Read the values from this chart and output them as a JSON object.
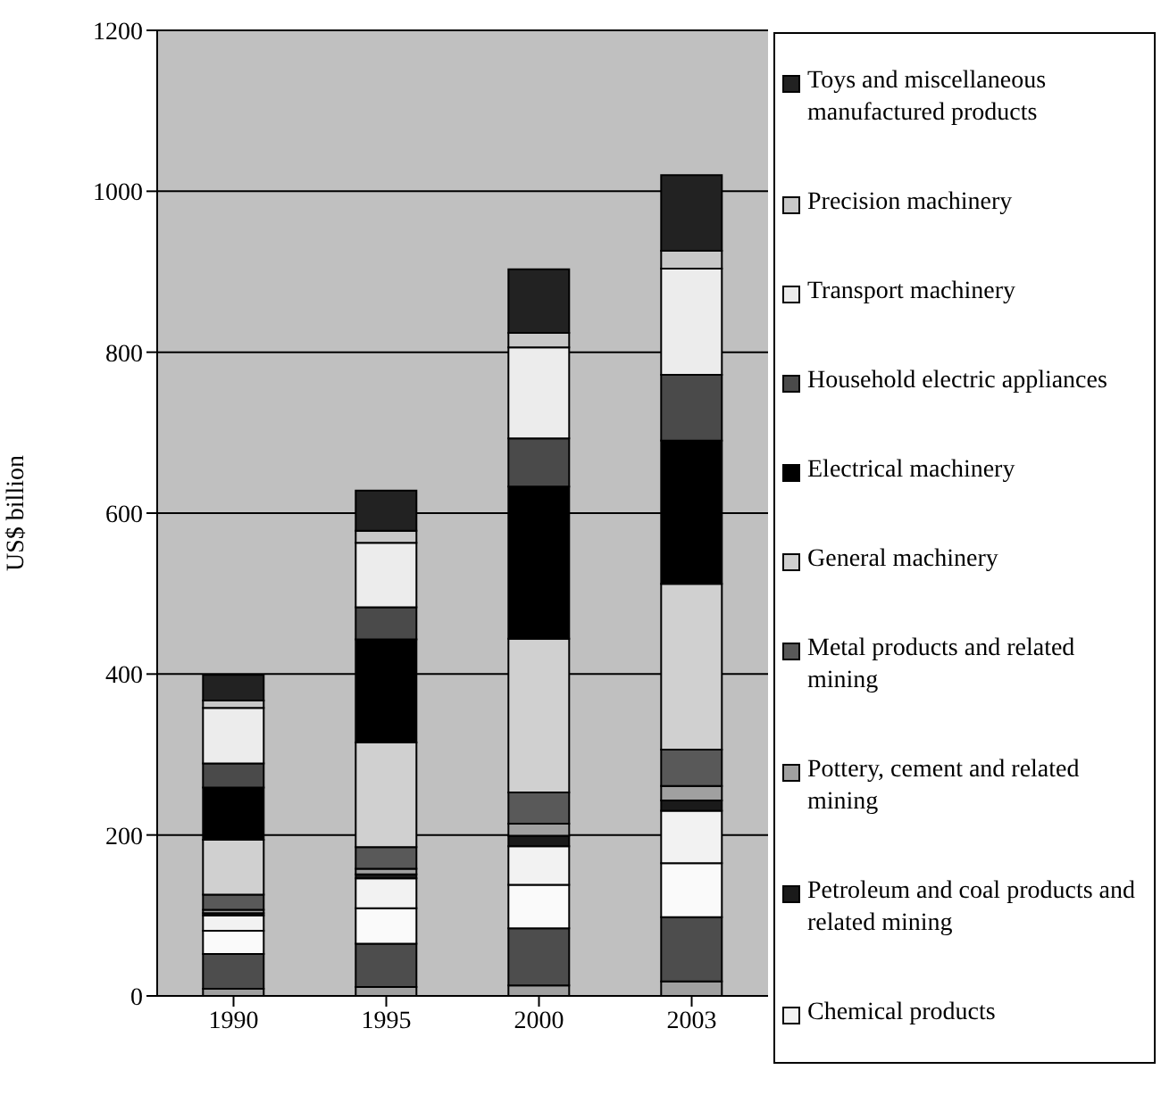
{
  "chart_data": {
    "type": "bar",
    "ylabel": "US$ billion",
    "categories": [
      "1990",
      "1995",
      "2000",
      "2003"
    ],
    "stacked": true,
    "ylim": [
      0,
      1200
    ],
    "yticks": [
      0,
      200,
      400,
      600,
      800,
      1000,
      1200
    ],
    "grid": "y",
    "legend": "right",
    "series": [
      {
        "color": "#a0a0a0",
        "values": [
          9,
          11,
          13,
          18
        ]
      },
      {
        "color": "#4d4d4d",
        "values": [
          43,
          54,
          71,
          80
        ]
      },
      {
        "color": "#fafafa",
        "values": [
          29,
          44,
          54,
          67
        ]
      },
      {
        "name": "Chemical products",
        "color": "#f2f2f2",
        "values": [
          19,
          37,
          48,
          65
        ]
      },
      {
        "name": "Petroleum and coal products and related mining",
        "color": "#1a1a1a",
        "values": [
          3,
          5,
          13,
          13
        ]
      },
      {
        "name": "Pottery, cement and related mining",
        "color": "#a0a0a0",
        "values": [
          4,
          7,
          15,
          18
        ]
      },
      {
        "name": "Metal products and related mining",
        "color": "#595959",
        "values": [
          19,
          27,
          39,
          45
        ]
      },
      {
        "name": "General machinery",
        "color": "#d0d0d0",
        "values": [
          68,
          130,
          191,
          206
        ]
      },
      {
        "name": "Electrical machinery",
        "color": "#000000",
        "values": [
          65,
          128,
          189,
          178
        ]
      },
      {
        "name": "Household electric appliances",
        "color": "#4a4a4a",
        "values": [
          30,
          40,
          60,
          82
        ]
      },
      {
        "name": "Transport machinery",
        "color": "#ececec",
        "values": [
          69,
          80,
          113,
          132
        ]
      },
      {
        "name": "Precision machinery",
        "color": "#c8c8c8",
        "values": [
          9,
          15,
          18,
          22
        ]
      },
      {
        "name": "Toys and miscellaneous manufactured products",
        "color": "#222222",
        "values": [
          32,
          50,
          79,
          94
        ]
      }
    ]
  }
}
